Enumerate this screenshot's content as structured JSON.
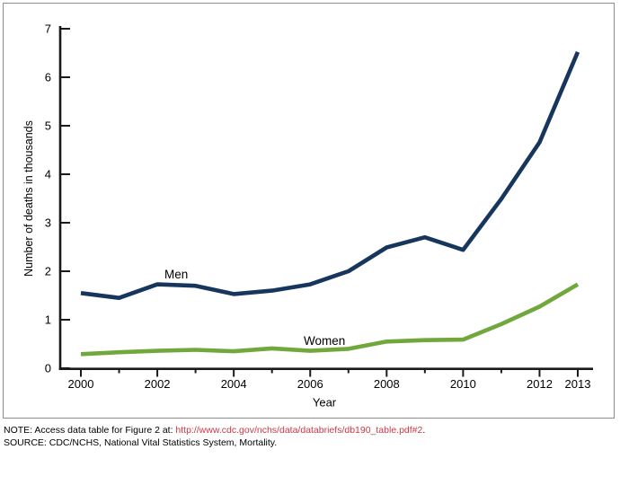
{
  "chart_data": {
    "type": "line",
    "title": "",
    "xlabel": "Year",
    "ylabel": "Number of deaths in thousands",
    "ylim": [
      0,
      7
    ],
    "yticks": [
      "0",
      "1",
      "2",
      "3",
      "4",
      "5",
      "6",
      "7"
    ],
    "x": [
      2000,
      2001,
      2002,
      2003,
      2004,
      2005,
      2006,
      2007,
      2008,
      2009,
      2010,
      2011,
      2012,
      2013
    ],
    "xtick_labels": [
      "2000",
      "2002",
      "2004",
      "2006",
      "2008",
      "2010",
      "2012",
      "2013"
    ],
    "grid": false,
    "legend_position": "inline-labels",
    "series": [
      {
        "name": "Men",
        "color": "#17365d",
        "values": [
          1.55,
          1.45,
          1.73,
          1.7,
          1.53,
          1.6,
          1.73,
          2.0,
          2.49,
          2.7,
          2.44,
          3.49,
          4.66,
          6.52
        ]
      },
      {
        "name": "Women",
        "color": "#70a83e",
        "values": [
          0.29,
          0.33,
          0.36,
          0.38,
          0.35,
          0.41,
          0.36,
          0.4,
          0.55,
          0.58,
          0.59,
          0.91,
          1.27,
          1.73
        ]
      }
    ]
  },
  "notes": {
    "note_prefix": "NOTE: Access data table for Figure 2 at: ",
    "note_link": "http://www.cdc.gov/nchs/data/databriefs/db190_table.pdf#2",
    "note_suffix": ".",
    "source": "SOURCE: CDC/NCHS, National Vital Statistics System, Mortality."
  },
  "colors": {
    "axis": "#1a1a1a",
    "tick_text": "#000000",
    "link": "#cb3a44",
    "frame_border": "#8c8c8c",
    "men_line": "#17365d",
    "women_line": "#70a83e"
  }
}
